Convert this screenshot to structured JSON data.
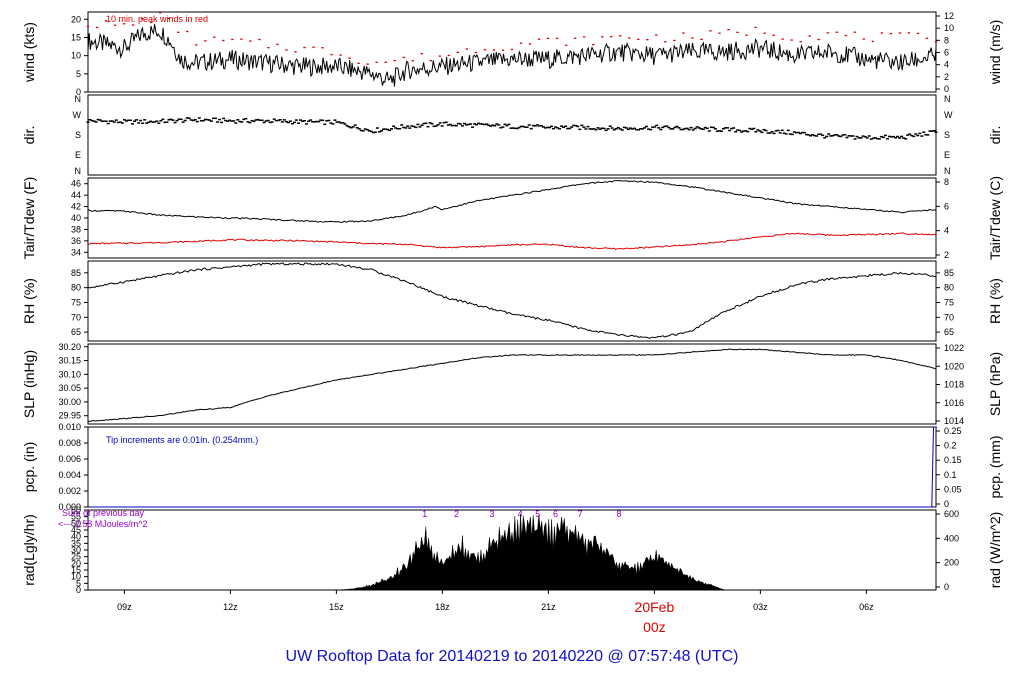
{
  "footer_title": "UW Rooftop Data for 20140219  to  20140220 @ 07:57:48  (UTC)",
  "colors": {
    "black": "#000000",
    "red": "#e00000",
    "blue": "#0000c0",
    "purple": "#9900cc",
    "title": "#1010c8"
  },
  "time_axis": {
    "ticks": [
      {
        "label": "09z",
        "h": 9
      },
      {
        "label": "12z",
        "h": 12
      },
      {
        "label": "15z",
        "h": 15
      },
      {
        "label": "18z",
        "h": 18
      },
      {
        "label": "21z",
        "h": 21
      },
      {
        "label": "00z",
        "h": 24
      },
      {
        "label": "03z",
        "h": 27
      },
      {
        "label": "06z",
        "h": 30
      }
    ],
    "date_label": "20Feb",
    "date_sub_label": "00z",
    "range_hours": [
      7.97,
      31.97
    ]
  },
  "chart_data": [
    {
      "type": "line",
      "panel": "wind",
      "ylabel_left": "wind (kts)",
      "ylabel_right": "wind (m/s)",
      "ylim": [
        0,
        22
      ],
      "yticks_left": [
        0,
        5,
        10,
        15,
        20
      ],
      "yticks_right": [
        0,
        2,
        4,
        6,
        8,
        10,
        12
      ],
      "annotation": "10 min. peak winds in red",
      "series": [
        {
          "color": "#000000",
          "x": [
            8,
            9,
            9.5,
            10,
            10.3,
            10.6,
            11,
            12,
            13,
            14,
            15,
            16,
            16.5,
            17,
            18,
            19,
            20,
            21,
            22,
            23,
            24,
            25,
            26,
            27,
            28,
            29,
            30,
            31,
            32
          ],
          "y": [
            14,
            12,
            16,
            17,
            14,
            9,
            8,
            9,
            8,
            7,
            7,
            5,
            3,
            6,
            7,
            8,
            9,
            9,
            10,
            11,
            10,
            11,
            11,
            12,
            10,
            11,
            9,
            8,
            10
          ]
        },
        {
          "color": "#e00000",
          "marker": "dash",
          "x": [
            8,
            9,
            10,
            11,
            12,
            13,
            14,
            15,
            16,
            17,
            18,
            19,
            20,
            21,
            22,
            23,
            24,
            25,
            26,
            27,
            28,
            29,
            30,
            31,
            32
          ],
          "y": [
            19,
            18,
            21,
            14,
            14,
            13,
            12,
            11,
            8,
            9,
            10,
            12,
            13,
            14,
            14,
            15,
            15,
            15,
            16,
            17,
            15,
            16,
            15,
            15,
            15
          ]
        }
      ]
    },
    {
      "type": "scatter",
      "panel": "dir",
      "ylabel_left": "dir.",
      "ylabel_right": "dir.",
      "ytick_labels": [
        "N",
        "E",
        "S",
        "W",
        "N"
      ],
      "ylim": [
        0,
        360
      ],
      "series": [
        {
          "color": "#000000",
          "x": [
            8,
            9,
            10,
            11,
            12,
            13,
            14,
            15,
            16,
            17,
            18,
            19,
            20,
            21,
            22,
            23,
            24,
            25,
            26,
            27,
            28,
            29,
            30,
            31,
            32
          ],
          "y": [
            245,
            240,
            242,
            250,
            245,
            245,
            240,
            238,
            200,
            220,
            230,
            225,
            220,
            215,
            215,
            210,
            215,
            210,
            205,
            200,
            190,
            175,
            170,
            170,
            195
          ]
        }
      ]
    },
    {
      "type": "line",
      "panel": "temperature",
      "ylabel_left": "Tair/Tdew (F)",
      "ylabel_right": "Tair/Tdew (C)",
      "ylim": [
        33,
        47
      ],
      "yticks_left": [
        34,
        36,
        38,
        40,
        42,
        44,
        46
      ],
      "yticks_right": [
        2,
        4,
        6,
        8
      ],
      "series": [
        {
          "name": "Tair",
          "color": "#000000",
          "x": [
            8,
            9,
            10,
            11,
            12,
            13,
            14,
            15,
            16,
            17,
            17.8,
            18,
            19,
            20,
            21,
            22,
            23,
            24,
            25,
            26,
            27,
            28,
            29,
            30,
            31,
            32
          ],
          "y": [
            41.3,
            41.2,
            40.5,
            40.2,
            40,
            39.8,
            39.5,
            39.3,
            39.5,
            40.5,
            42,
            41.5,
            43,
            44,
            45,
            46,
            46.5,
            46.3,
            45.5,
            44.5,
            43.5,
            42.5,
            42,
            41.5,
            41,
            41.5
          ]
        },
        {
          "name": "Tdew",
          "color": "#e00000",
          "x": [
            8,
            9,
            10,
            11,
            12,
            13,
            14,
            15,
            16,
            17,
            18,
            19,
            20,
            21,
            22,
            23,
            24,
            25,
            26,
            27,
            28,
            29,
            30,
            31,
            32
          ],
          "y": [
            35.5,
            35.6,
            35.7,
            35.9,
            36.2,
            36.1,
            36,
            35.8,
            35.5,
            35.4,
            34.8,
            35,
            35.3,
            35.4,
            34.8,
            34.6,
            34.9,
            35.3,
            35.9,
            36.7,
            37.3,
            37,
            37.1,
            37.3,
            37.1
          ]
        }
      ]
    },
    {
      "type": "line",
      "panel": "rh",
      "ylabel_left": "RH (%)",
      "ylabel_right": "RH (%)",
      "ylim": [
        62,
        89
      ],
      "yticks": [
        65,
        70,
        75,
        80,
        85
      ],
      "series": [
        {
          "color": "#000000",
          "x": [
            8,
            9,
            10,
            11,
            12,
            13,
            14,
            15,
            16,
            17,
            18,
            19,
            20,
            21,
            22,
            23,
            24,
            25,
            26,
            27,
            28,
            29,
            30,
            31,
            32
          ],
          "y": [
            80,
            82,
            84,
            86,
            87,
            88,
            88,
            88,
            86,
            82,
            77,
            74,
            71,
            69,
            66,
            64,
            63,
            65,
            72,
            77,
            81,
            83,
            84,
            85,
            84
          ]
        }
      ]
    },
    {
      "type": "line",
      "panel": "slp",
      "ylabel_left": "SLP (inHg)",
      "ylabel_right": "SLP (hPa)",
      "ylim": [
        29.92,
        30.21
      ],
      "yticks_left": [
        29.95,
        30.0,
        30.05,
        30.1,
        30.15,
        30.2
      ],
      "yticks_left_labels": [
        "29.95",
        "30.00",
        "30.05",
        "30.10",
        "30.15",
        "30.20"
      ],
      "yticks_right": [
        1014,
        1016,
        1018,
        1020,
        1022
      ],
      "series": [
        {
          "color": "#000000",
          "x": [
            8,
            9,
            10,
            11,
            12,
            13,
            14,
            15,
            16,
            17,
            18,
            19,
            20,
            21,
            22,
            23,
            24,
            25,
            26,
            27,
            28,
            29,
            30,
            31,
            32
          ],
          "y": [
            29.93,
            29.94,
            29.95,
            29.97,
            29.98,
            30.02,
            30.05,
            30.08,
            30.1,
            30.12,
            30.14,
            30.16,
            30.17,
            30.17,
            30.17,
            30.17,
            30.17,
            30.18,
            30.19,
            30.19,
            30.18,
            30.17,
            30.17,
            30.15,
            30.12
          ]
        }
      ]
    },
    {
      "type": "line",
      "panel": "pcp",
      "ylabel_left": "pcp. (in)",
      "ylabel_right": "pcp. (mm)",
      "ylim": [
        0,
        0.01
      ],
      "yticks_left": [
        0,
        0.002,
        0.004,
        0.006,
        0.008,
        0.01
      ],
      "yticks_left_labels": [
        "0.000",
        "0.002",
        "0.004",
        "0.006",
        "0.008",
        "0.010"
      ],
      "yticks_right": [
        0,
        0.05,
        0.1,
        0.15,
        0.2,
        0.25
      ],
      "yticks_right_labels": [
        "0",
        "0.05",
        "0.1",
        "0.15",
        "0.2",
        "0.25"
      ],
      "annotation": "Tip increments are 0.01in. (0.254mm.)",
      "series": [
        {
          "color": "#0000c0",
          "x": [
            8,
            31.85,
            31.9,
            32
          ],
          "y": [
            0,
            0,
            0.01,
            0.01
          ]
        }
      ]
    },
    {
      "type": "area",
      "panel": "rad",
      "ylabel_left": "rad(Lgly/hr)",
      "ylabel_right": "rad (W/m^2)",
      "ylim": [
        0,
        60
      ],
      "yticks_left": [
        0,
        5,
        10,
        15,
        20,
        25,
        30,
        35,
        40,
        45,
        50,
        55,
        60
      ],
      "yticks_right": [
        0,
        200,
        400,
        600
      ],
      "annotations": [
        "Sum of previous day",
        "<--- 2.58 MJoules/m^2"
      ],
      "markers": [
        "1",
        "2",
        "3",
        "4",
        "5",
        "6",
        "7",
        "8"
      ],
      "series": [
        {
          "color": "#000000",
          "x": [
            8,
            15,
            15.5,
            16,
            16.5,
            17,
            17.5,
            17.8,
            18,
            18.5,
            19,
            19.5,
            20,
            20.5,
            21,
            21.5,
            22,
            22.5,
            23,
            23.5,
            24,
            24.5,
            25,
            25.5,
            26,
            32
          ],
          "y": [
            0,
            0,
            1,
            4,
            10,
            20,
            45,
            30,
            22,
            38,
            25,
            42,
            50,
            52,
            48,
            52,
            40,
            38,
            20,
            18,
            28,
            20,
            10,
            5,
            0,
            0
          ]
        }
      ]
    }
  ]
}
